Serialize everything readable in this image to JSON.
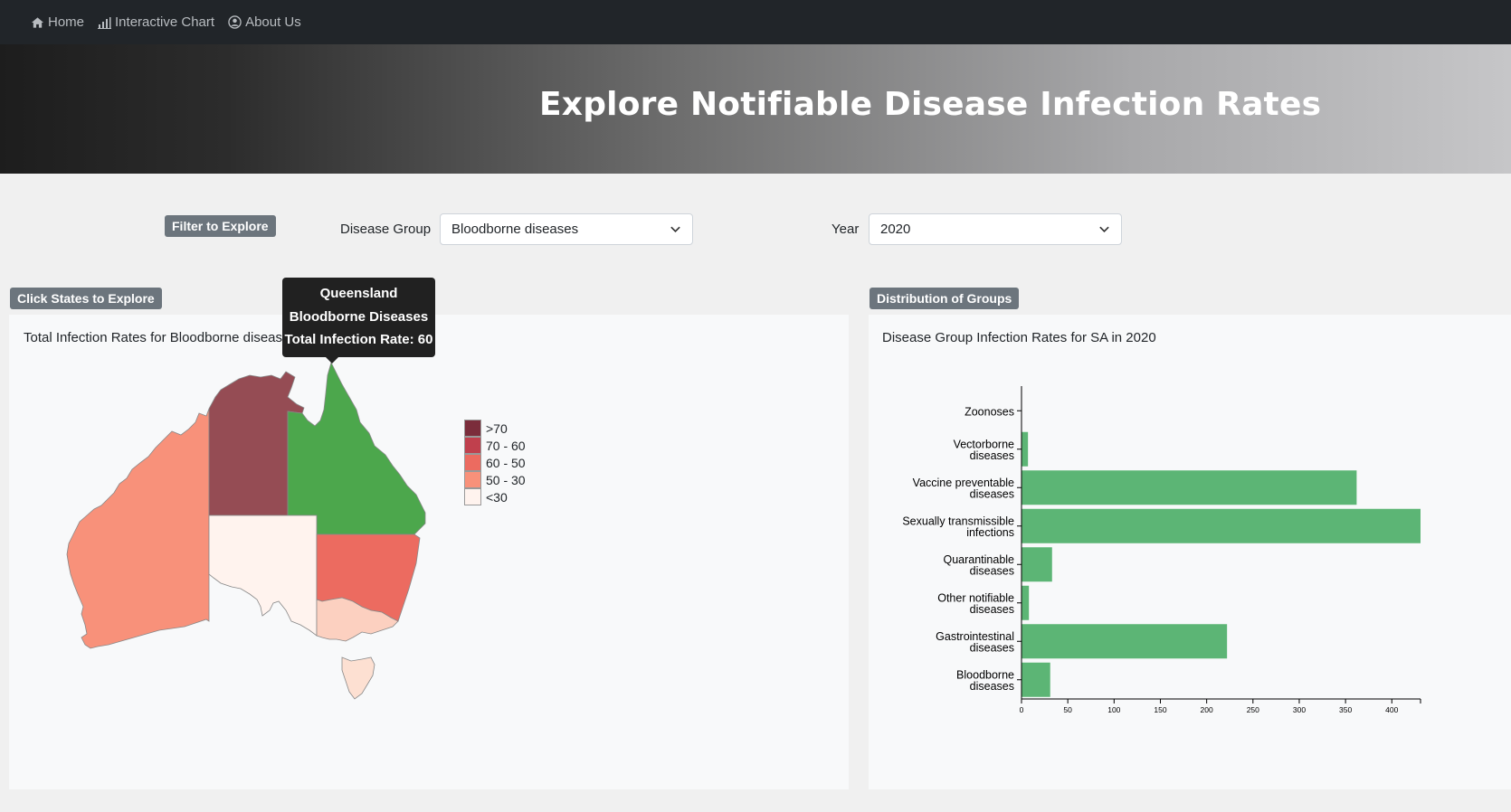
{
  "nav": {
    "items": [
      {
        "label": "Home",
        "icon": "home-icon"
      },
      {
        "label": "Interactive Chart",
        "icon": "bar-chart-icon"
      },
      {
        "label": "About Us",
        "icon": "user-circle-icon"
      }
    ]
  },
  "hero": {
    "title": "Explore Notifiable Disease Infection Rates"
  },
  "filters": {
    "badge": "Filter to Explore",
    "disease_label": "Disease Group",
    "disease_value": "Bloodborne diseases",
    "year_label": "Year",
    "year_value": "2020"
  },
  "map_panel": {
    "badge": "Click States to Explore",
    "title": "Total Infection Rates for Bloodborne diseases in 2020",
    "tooltip": {
      "state": "Queensland",
      "group": "Bloodborne Diseases",
      "rate": "Total Infection Rate: 60"
    },
    "legend": [
      {
        "label": ">70",
        "color": "#7b2d3b"
      },
      {
        "label": "70 - 60",
        "color": "#c0404d"
      },
      {
        "label": "60 - 50",
        "color": "#ec6b60"
      },
      {
        "label": "50 - 30",
        "color": "#f8917a"
      },
      {
        "label": "<30",
        "color": "#fff3ee"
      }
    ],
    "states": {
      "WA": "#f8917a",
      "NT": "#954c54",
      "QLD": "#4ca74c",
      "SA": "#fff3ee",
      "NSW": "#ec6b60",
      "VIC": "#fcd0c0",
      "TAS": "#fde0d2"
    }
  },
  "bar_panel": {
    "badge": "Distribution of Groups",
    "title": "Disease Group Infection Rates for SA in 2020"
  },
  "chart_data": {
    "type": "bar",
    "orientation": "horizontal",
    "title": "Disease Group Infection Rates for SA in 2020",
    "categories": [
      "Zoonoses",
      "Vectorborne diseases",
      "Vaccine preventable diseases",
      "Sexually transmissible infections",
      "Quarantinable diseases",
      "Other notifiable diseases",
      "Gastrointestinal diseases",
      "Bloodborne diseases"
    ],
    "category_lines": [
      [
        "Zoonoses"
      ],
      [
        "Vectorborne",
        "diseases"
      ],
      [
        "Vaccine preventable",
        "diseases"
      ],
      [
        "Sexually transmissible",
        "infections"
      ],
      [
        "Quarantinable",
        "diseases"
      ],
      [
        "Other notifiable",
        "diseases"
      ],
      [
        "Gastrointestinal",
        "diseases"
      ],
      [
        "Bloodborne",
        "diseases"
      ]
    ],
    "values": [
      0,
      7,
      362,
      431,
      33,
      8,
      222,
      31
    ],
    "xticks": [
      0,
      50,
      100,
      150,
      200,
      250,
      300,
      350,
      400
    ],
    "xlim": [
      0,
      431
    ],
    "bar_color": "#5cb575"
  }
}
